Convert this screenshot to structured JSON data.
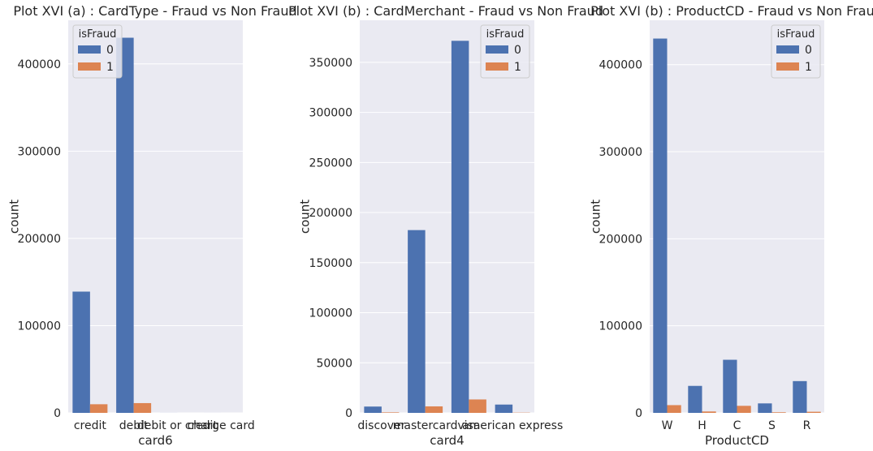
{
  "chart_data": [
    {
      "type": "bar",
      "title": "Plot XVI (a) : CardType - Fraud vs Non Fraud",
      "xlabel": "card6",
      "ylabel": "count",
      "categories": [
        "credit",
        "debit",
        "debit or credit",
        "charge card"
      ],
      "yticks": [
        "0",
        "100000",
        "200000",
        "300000",
        "400000"
      ],
      "ylim": [
        0,
        450000
      ],
      "legend_title": "isFraud",
      "legend_position": "top-left",
      "grid": true,
      "series": [
        {
          "name": "0",
          "color": "#4c72b0",
          "values": [
            139000,
            430000,
            30,
            15
          ]
        },
        {
          "name": "1",
          "color": "#dd8452",
          "values": [
            9900,
            11200,
            0,
            0
          ]
        }
      ]
    },
    {
      "type": "bar",
      "title": "Plot XVI (b) : CardMerchant - Fraud vs Non Fraud",
      "xlabel": "card4",
      "ylabel": "count",
      "categories": [
        "discover",
        "mastercard",
        "visa",
        "american express"
      ],
      "yticks": [
        "0",
        "50000",
        "100000",
        "150000",
        "200000",
        "250000",
        "300000",
        "350000"
      ],
      "ylim": [
        0,
        392000
      ],
      "legend_title": "isFraud",
      "legend_position": "top-right",
      "grid": true,
      "series": [
        {
          "name": "0",
          "color": "#4c72b0",
          "values": [
            6300,
            182500,
            371500,
            8300
          ]
        },
        {
          "name": "1",
          "color": "#dd8452",
          "values": [
            500,
            6500,
            13400,
            240
          ]
        }
      ]
    },
    {
      "type": "bar",
      "title": "Plot XVI (b) : ProductCD - Fraud vs Non Fraud",
      "xlabel": "ProductCD",
      "ylabel": "count",
      "categories": [
        "W",
        "H",
        "C",
        "S",
        "R"
      ],
      "yticks": [
        "0",
        "100000",
        "200000",
        "300000",
        "400000"
      ],
      "ylim": [
        0,
        451000
      ],
      "legend_title": "isFraud",
      "legend_position": "top-right",
      "grid": true,
      "series": [
        {
          "name": "0",
          "color": "#4c72b0",
          "values": [
            430000,
            31000,
            61000,
            10900,
            36500
          ]
        },
        {
          "name": "1",
          "color": "#dd8452",
          "values": [
            8900,
            1600,
            8100,
            700,
            1300
          ]
        }
      ]
    }
  ]
}
